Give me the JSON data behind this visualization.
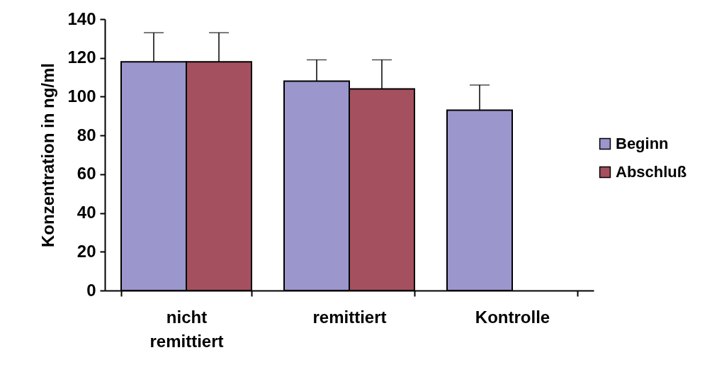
{
  "chart_data": {
    "type": "bar",
    "ylabel": "Konzentration in ng/ml",
    "categories": [
      "nicht remittiert",
      "remittiert",
      "Kontrolle"
    ],
    "series": [
      {
        "name": "Beginn",
        "color": "#9b96cc",
        "values": [
          118,
          108,
          93
        ],
        "errors": [
          [
            118,
            133
          ],
          [
            108,
            119
          ],
          [
            93,
            106
          ]
        ]
      },
      {
        "name": "Abschluß",
        "color": "#a5505f",
        "values": [
          118,
          104,
          null
        ],
        "errors": [
          [
            118,
            133
          ],
          [
            104,
            119
          ],
          null
        ]
      }
    ],
    "ylim": [
      0,
      140
    ],
    "yticks": [
      0,
      20,
      40,
      60,
      80,
      100,
      120,
      140
    ],
    "grid": false,
    "legend": "right"
  }
}
